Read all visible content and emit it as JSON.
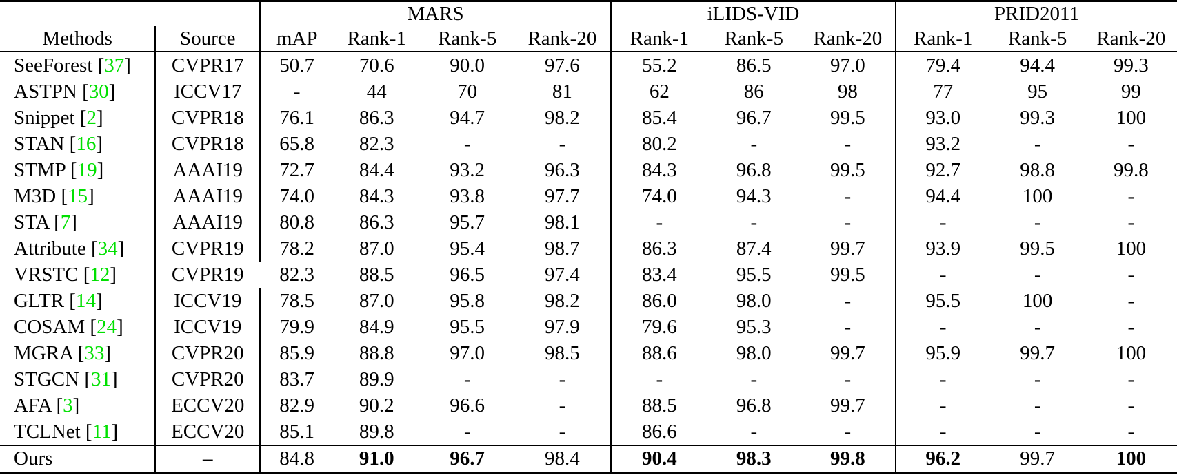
{
  "colors": {
    "citation_green": "#00e000",
    "text": "#000000",
    "background": "#ffffff"
  },
  "table": {
    "groups": [
      {
        "label": "MARS",
        "cols": 4
      },
      {
        "label": "iLIDS-VID",
        "cols": 3
      },
      {
        "label": "PRID2011",
        "cols": 3
      }
    ],
    "headers": {
      "methods": "Methods",
      "source": "Source",
      "mars": [
        "mAP",
        "Rank-1",
        "Rank-5",
        "Rank-20"
      ],
      "ilids": [
        "Rank-1",
        "Rank-5",
        "Rank-20"
      ],
      "prid": [
        "Rank-1",
        "Rank-5",
        "Rank-20"
      ]
    },
    "rows": [
      {
        "method": "SeeForest",
        "cite": "37",
        "source": "CVPR17",
        "values": [
          "50.7",
          "70.6",
          "90.0",
          "97.6",
          "55.2",
          "86.5",
          "97.0",
          "79.4",
          "94.4",
          "99.3"
        ]
      },
      {
        "method": "ASTPN",
        "cite": "30",
        "source": "ICCV17",
        "values": [
          "-",
          "44",
          "70",
          "81",
          "62",
          "86",
          "98",
          "77",
          "95",
          "99"
        ]
      },
      {
        "method": "Snippet",
        "cite": "2",
        "source": "CVPR18",
        "values": [
          "76.1",
          "86.3",
          "94.7",
          "98.2",
          "85.4",
          "96.7",
          "99.5",
          "93.0",
          "99.3",
          "100"
        ]
      },
      {
        "method": "STAN",
        "cite": "16",
        "source": "CVPR18",
        "values": [
          "65.8",
          "82.3",
          "-",
          "-",
          "80.2",
          "-",
          "-",
          "93.2",
          "-",
          "-"
        ]
      },
      {
        "method": "STMP",
        "cite": "19",
        "source": "AAAI19",
        "values": [
          "72.7",
          "84.4",
          "93.2",
          "96.3",
          "84.3",
          "96.8",
          "99.5",
          "92.7",
          "98.8",
          "99.8"
        ]
      },
      {
        "method": "M3D",
        "cite": "15",
        "source": "AAAI19",
        "values": [
          "74.0",
          "84.3",
          "93.8",
          "97.7",
          "74.0",
          "94.3",
          "-",
          "94.4",
          "100",
          "-"
        ]
      },
      {
        "method": "STA",
        "cite": "7",
        "source": "AAAI19",
        "values": [
          "80.8",
          "86.3",
          "95.7",
          "98.1",
          "-",
          "-",
          "-",
          "-",
          "-",
          "-"
        ]
      },
      {
        "method": "Attribute",
        "cite": "34",
        "source": "CVPR19",
        "values": [
          "78.2",
          "87.0",
          "95.4",
          "98.7",
          "86.3",
          "87.4",
          "99.7",
          "93.9",
          "99.5",
          "100"
        ]
      },
      {
        "method": "VRSTC",
        "cite": "12",
        "source": "CVPR19",
        "vline_break": true,
        "values": [
          "82.3",
          "88.5",
          "96.5",
          "97.4",
          "83.4",
          "95.5",
          "99.5",
          "-",
          "-",
          "-"
        ]
      },
      {
        "method": "GLTR",
        "cite": "14",
        "source": "ICCV19",
        "values": [
          "78.5",
          "87.0",
          "95.8",
          "98.2",
          "86.0",
          "98.0",
          "-",
          "95.5",
          "100",
          "-"
        ]
      },
      {
        "method": "COSAM",
        "cite": "24",
        "source": "ICCV19",
        "values": [
          "79.9",
          "84.9",
          "95.5",
          "97.9",
          "79.6",
          "95.3",
          "-",
          "-",
          "-",
          "-"
        ]
      },
      {
        "method": "MGRA",
        "cite": "33",
        "source": "CVPR20",
        "values": [
          "85.9",
          "88.8",
          "97.0",
          "98.5",
          "88.6",
          "98.0",
          "99.7",
          "95.9",
          "99.7",
          "100"
        ]
      },
      {
        "method": "STGCN",
        "cite": "31",
        "source": "CVPR20",
        "values": [
          "83.7",
          "89.9",
          "-",
          "-",
          "-",
          "-",
          "-",
          "-",
          "-",
          "-"
        ]
      },
      {
        "method": "AFA",
        "cite": "3",
        "source": "ECCV20",
        "values": [
          "82.9",
          "90.2",
          "96.6",
          "-",
          "88.5",
          "96.8",
          "99.7",
          "-",
          "-",
          "-"
        ]
      },
      {
        "method": "TCLNet",
        "cite": "11",
        "source": "ECCV20",
        "values": [
          "85.1",
          "89.8",
          "-",
          "-",
          "86.6",
          "-",
          "-",
          "-",
          "-",
          "-"
        ]
      }
    ],
    "ours": {
      "method": "Ours",
      "source": "–",
      "values": [
        "84.8",
        "91.0",
        "96.7",
        "98.4",
        "90.4",
        "98.3",
        "99.8",
        "96.2",
        "99.7",
        "100"
      ],
      "bold": [
        false,
        true,
        true,
        false,
        true,
        true,
        true,
        true,
        false,
        true
      ]
    }
  }
}
